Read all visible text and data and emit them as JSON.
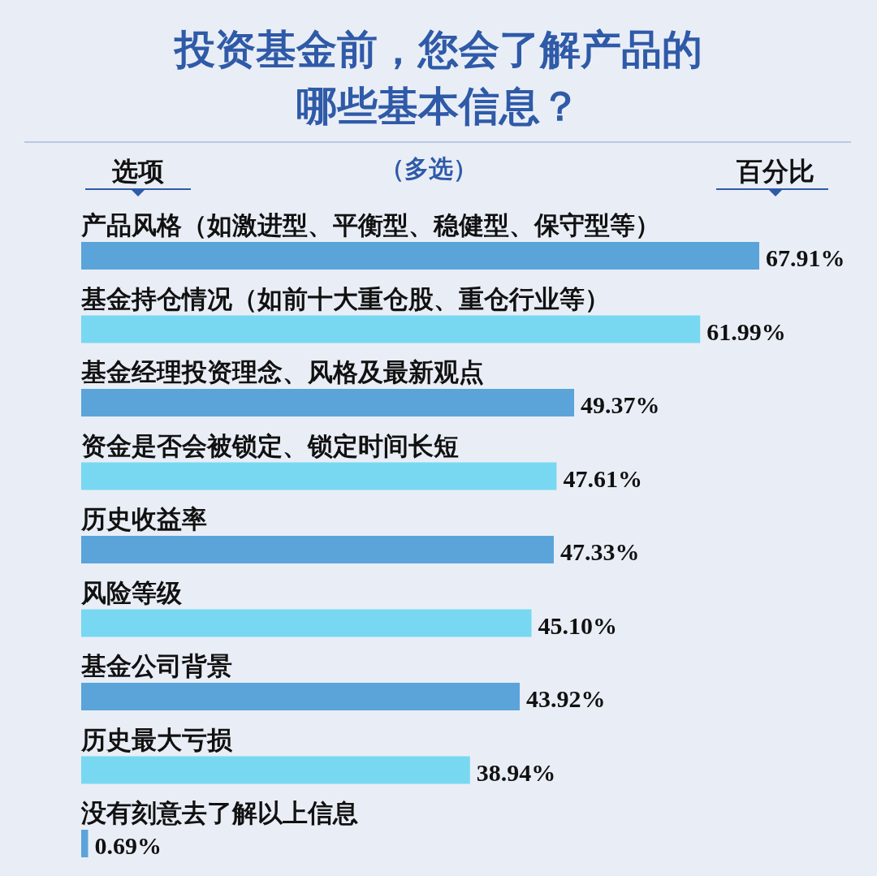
{
  "chart_data": {
    "type": "bar",
    "orientation": "horizontal",
    "title": "投资基金前，您会了解产品的哪些基本信息？",
    "subtitle": "（多选）",
    "ylabel": "选项",
    "xlabel": "百分比",
    "categories": [
      "产品风格（如激进型、平衡型、稳健型、保守型等）",
      "基金持仓情况（如前十大重仓股、重仓行业等）",
      "基金经理投资理念、风格及最新观点",
      "资金是否会被锁定、锁定时间长短",
      "历史收益率",
      "风险等级",
      "基金公司背景",
      "历史最大亏损",
      "没有刻意去了解以上信息"
    ],
    "values": [
      67.91,
      61.99,
      49.37,
      47.61,
      47.33,
      45.1,
      43.92,
      38.94,
      0.69
    ],
    "value_labels": [
      "67.91%",
      "61.99%",
      "49.37%",
      "47.61%",
      "47.33%",
      "45.10%",
      "43.92%",
      "38.94%",
      "0.69%"
    ],
    "colors": [
      "#5ba4da",
      "#78d8f2",
      "#5ba4da",
      "#78d8f2",
      "#5ba4da",
      "#78d8f2",
      "#5ba4da",
      "#78d8f2",
      "#5ba4da"
    ]
  }
}
